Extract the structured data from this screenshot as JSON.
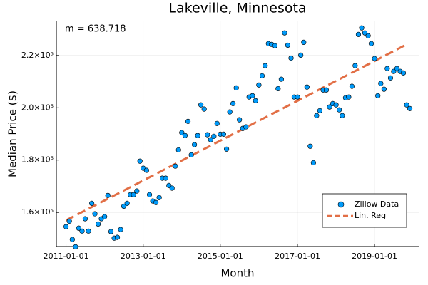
{
  "chart_data": {
    "type": "scatter",
    "title": "Lakeville, Minnesota",
    "x_label": "Month",
    "y_label": "Median Price ($)",
    "annotation": "m = 638.718",
    "x": [
      "2011-01-01",
      "2011-02-01",
      "2011-03-01",
      "2011-04-01",
      "2011-05-01",
      "2011-06-01",
      "2011-07-01",
      "2011-08-01",
      "2011-09-01",
      "2011-10-01",
      "2011-11-01",
      "2011-12-01",
      "2012-01-01",
      "2012-02-01",
      "2012-03-01",
      "2012-04-01",
      "2012-05-01",
      "2012-06-01",
      "2012-07-01",
      "2012-08-01",
      "2012-09-01",
      "2012-10-01",
      "2012-11-01",
      "2012-12-01",
      "2013-01-01",
      "2013-02-01",
      "2013-03-01",
      "2013-04-01",
      "2013-05-01",
      "2013-06-01",
      "2013-07-01",
      "2013-08-01",
      "2013-09-01",
      "2013-10-01",
      "2013-11-01",
      "2013-12-01",
      "2014-01-01",
      "2014-02-01",
      "2014-03-01",
      "2014-04-01",
      "2014-05-01",
      "2014-06-01",
      "2014-07-01",
      "2014-08-01",
      "2014-09-01",
      "2014-10-01",
      "2014-11-01",
      "2014-12-01",
      "2015-01-01",
      "2015-02-01",
      "2015-03-01",
      "2015-04-01",
      "2015-05-01",
      "2015-06-01",
      "2015-07-01",
      "2015-08-01",
      "2015-09-01",
      "2015-10-01",
      "2015-11-01",
      "2015-12-01",
      "2016-01-01",
      "2016-02-01",
      "2016-03-01",
      "2016-04-01",
      "2016-05-01",
      "2016-06-01",
      "2016-07-01",
      "2016-08-01",
      "2016-09-01",
      "2016-10-01",
      "2016-11-01",
      "2016-12-01",
      "2017-01-01",
      "2017-02-01",
      "2017-03-01",
      "2017-04-01",
      "2017-05-01",
      "2017-06-01",
      "2017-07-01",
      "2017-08-01",
      "2017-09-01",
      "2017-10-01",
      "2017-11-01",
      "2017-12-01",
      "2018-01-01",
      "2018-02-01",
      "2018-03-01",
      "2018-04-01",
      "2018-05-01",
      "2018-06-01",
      "2018-07-01",
      "2018-08-01",
      "2018-09-01",
      "2018-10-01",
      "2018-11-01",
      "2018-12-01",
      "2019-01-01",
      "2019-02-01",
      "2019-03-01",
      "2019-04-01",
      "2019-05-01",
      "2019-06-01",
      "2019-07-01",
      "2019-08-01",
      "2019-09-01",
      "2019-10-01",
      "2019-11-01",
      "2019-12-01"
    ],
    "series": [
      {
        "name": "Zillow Data",
        "color": "#009af9",
        "values": [
          154600,
          156700,
          149700,
          146900,
          154000,
          152900,
          157600,
          152900,
          163500,
          159500,
          155600,
          157600,
          158400,
          166500,
          152700,
          150200,
          150500,
          153500,
          162400,
          163500,
          166800,
          166800,
          168200,
          179600,
          176900,
          176100,
          166800,
          164400,
          163800,
          165700,
          173100,
          173100,
          170300,
          169300,
          177700,
          183900,
          190500,
          189400,
          194800,
          182000,
          185900,
          189400,
          201100,
          199500,
          189700,
          187800,
          189100,
          194000,
          189900,
          189900,
          184200,
          198400,
          201600,
          207600,
          195400,
          192100,
          192700,
          204100,
          204600,
          202700,
          208700,
          212200,
          216100,
          224500,
          224200,
          223700,
          207300,
          210900,
          228600,
          223900,
          219000,
          204100,
          204100,
          220100,
          225000,
          207900,
          185300,
          179000,
          197000,
          198900,
          206800,
          206800,
          200300,
          201600,
          201100,
          199200,
          197000,
          203800,
          204100,
          208200,
          216100,
          228000,
          230500,
          228600,
          227500,
          224500,
          218800,
          204600,
          209300,
          207100,
          215000,
          211400,
          213900,
          215000,
          213900,
          213300,
          201100,
          199700
        ]
      }
    ],
    "regression": {
      "name": "Lin. Reg",
      "color": "#e26f46",
      "x": [
        "2011-01-01",
        "2019-11-01"
      ],
      "values": [
        157000,
        224200
      ]
    },
    "xlim": [
      "2010-10-01",
      "2020-03-01"
    ],
    "xticks": [
      "2011-01-01",
      "2013-01-01",
      "2015-01-01",
      "2017-01-01",
      "2019-01-01"
    ],
    "ylim": [
      147000,
      233000
    ],
    "yticks": [
      {
        "value": 160000,
        "label": "1.6×10⁵"
      },
      {
        "value": 180000,
        "label": "1.8×10⁵"
      },
      {
        "value": 200000,
        "label": "2.0×10⁵"
      },
      {
        "value": 220000,
        "label": "2.2×10⁵"
      }
    ],
    "grid": true,
    "legend": "bottom-right"
  }
}
